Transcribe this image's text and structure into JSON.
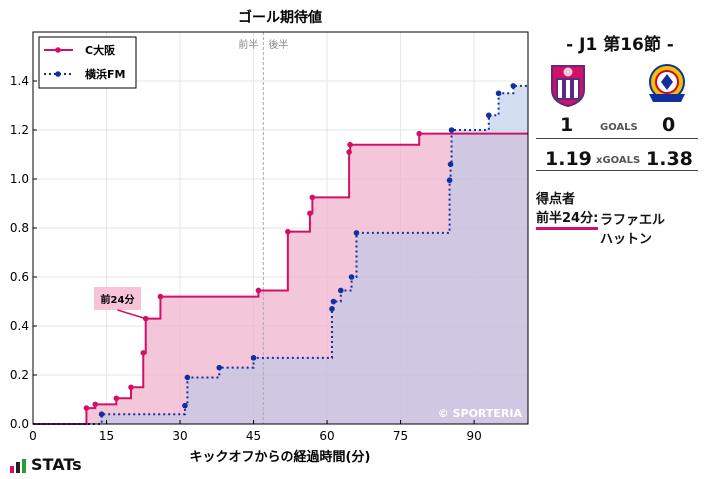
{
  "chart_data": {
    "type": "line",
    "step": true,
    "title": "ゴール期待値",
    "xlabel": "キックオフからの経過時間(分)",
    "ylabel": "",
    "xlim": [
      0,
      101
    ],
    "ylim": [
      0,
      1.6
    ],
    "xticks": [
      0,
      15,
      30,
      45,
      60,
      75,
      90
    ],
    "yticks": [
      0.0,
      0.2,
      0.4,
      0.6,
      0.8,
      1.0,
      1.2,
      1.4
    ],
    "grid": true,
    "legend_position": "top-left",
    "halftime_labels": [
      "前半",
      "後半"
    ],
    "halftime_minute": 47,
    "watermark": "© SPORTERIA",
    "annotation": {
      "text": "前24分",
      "x": 23,
      "y": 0.43
    },
    "series": [
      {
        "name": "C大阪",
        "color": "#d40f66",
        "fill": "#f0b3cc",
        "style": "solid",
        "points": [
          [
            0,
            0
          ],
          [
            10.9,
            0
          ],
          [
            10.9,
            0.065
          ],
          [
            12.7,
            0.065
          ],
          [
            12.7,
            0.08
          ],
          [
            17,
            0.08
          ],
          [
            17,
            0.105
          ],
          [
            20,
            0.105
          ],
          [
            20,
            0.15
          ],
          [
            22.5,
            0.15
          ],
          [
            22.5,
            0.29
          ],
          [
            23,
            0.29
          ],
          [
            23,
            0.43
          ],
          [
            26,
            0.43
          ],
          [
            26,
            0.52
          ],
          [
            46,
            0.52
          ],
          [
            46,
            0.545
          ],
          [
            52,
            0.545
          ],
          [
            52,
            0.785
          ],
          [
            56.5,
            0.785
          ],
          [
            56.5,
            0.86
          ],
          [
            57,
            0.86
          ],
          [
            57,
            0.925
          ],
          [
            64.5,
            0.925
          ],
          [
            64.5,
            1.11
          ],
          [
            64.7,
            1.11
          ],
          [
            64.7,
            1.14
          ],
          [
            78.8,
            1.14
          ],
          [
            78.8,
            1.185
          ],
          [
            101,
            1.185
          ]
        ],
        "markers": [
          [
            10.9,
            0.065
          ],
          [
            12.7,
            0.08
          ],
          [
            17,
            0.105
          ],
          [
            20,
            0.15
          ],
          [
            22.5,
            0.29
          ],
          [
            23,
            0.43
          ],
          [
            26,
            0.52
          ],
          [
            46,
            0.545
          ],
          [
            52,
            0.785
          ],
          [
            56.5,
            0.86
          ],
          [
            57,
            0.925
          ],
          [
            64.5,
            1.11
          ],
          [
            64.7,
            1.14
          ],
          [
            78.8,
            1.185
          ]
        ]
      },
      {
        "name": "横浜FM",
        "color": "#1030a0",
        "fill": "#b8c8e8",
        "style": "dotted",
        "points": [
          [
            0,
            0
          ],
          [
            14,
            0
          ],
          [
            14,
            0.04
          ],
          [
            31,
            0.04
          ],
          [
            31,
            0.075
          ],
          [
            31.5,
            0.075
          ],
          [
            31.5,
            0.19
          ],
          [
            38,
            0.19
          ],
          [
            38,
            0.23
          ],
          [
            45,
            0.23
          ],
          [
            45,
            0.27
          ],
          [
            61,
            0.27
          ],
          [
            61,
            0.47
          ],
          [
            61.3,
            0.47
          ],
          [
            61.3,
            0.5
          ],
          [
            62.8,
            0.5
          ],
          [
            62.8,
            0.545
          ],
          [
            65,
            0.545
          ],
          [
            65,
            0.6
          ],
          [
            66,
            0.6
          ],
          [
            66,
            0.78
          ],
          [
            85,
            0.78
          ],
          [
            85,
            0.995
          ],
          [
            85.2,
            0.995
          ],
          [
            85.2,
            1.06
          ],
          [
            85.4,
            1.06
          ],
          [
            85.4,
            1.2
          ],
          [
            93,
            1.2
          ],
          [
            93,
            1.26
          ],
          [
            95,
            1.26
          ],
          [
            95,
            1.35
          ],
          [
            98,
            1.35
          ],
          [
            98,
            1.38
          ],
          [
            101,
            1.38
          ]
        ],
        "markers": [
          [
            14,
            0.04
          ],
          [
            31,
            0.075
          ],
          [
            31.5,
            0.19
          ],
          [
            38,
            0.23
          ],
          [
            45,
            0.27
          ],
          [
            61,
            0.47
          ],
          [
            61.3,
            0.5
          ],
          [
            62.8,
            0.545
          ],
          [
            65,
            0.6
          ],
          [
            66,
            0.78
          ],
          [
            85,
            0.995
          ],
          [
            85.2,
            1.06
          ],
          [
            85.4,
            1.2
          ],
          [
            93,
            1.26
          ],
          [
            95,
            1.35
          ],
          [
            98,
            1.38
          ]
        ]
      }
    ]
  },
  "match": {
    "title": "- J1 第16節 -",
    "home_crest_icon": "cerezo-osaka-crest-icon",
    "away_crest_icon": "yokohama-f-marinos-crest-icon",
    "goals_label": "GOALS",
    "home_goals": "1",
    "away_goals": "0",
    "xgoals_label": "xGOALS",
    "home_xg": "1.19",
    "away_xg": "1.38"
  },
  "scorers": {
    "title": "得点者",
    "items": [
      {
        "time": "前半24分:",
        "name": "ラファエル ハットン"
      }
    ]
  },
  "brand": {
    "name": "STATs",
    "icon": "bar-chart-icon",
    "accent": "#d40f66"
  }
}
